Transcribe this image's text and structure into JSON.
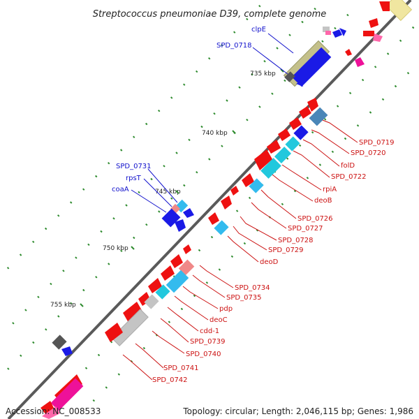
{
  "title": "Streptococcus pneumoniae D39, complete genome",
  "footer": {
    "accession": "Accession: NC_008533",
    "topology": "Topology: circular; Length: 2,046,115 bp; Genes: 1,986"
  },
  "colors": {
    "backbone": "#5a5a5a",
    "tick": "#2e8b2e",
    "ring_dot": "#2e8b2e",
    "label_blue": "#1010cc",
    "label_red": "#cc1111",
    "gene_red": "#ee1111",
    "gene_blue": "#1a1ae6",
    "gene_cyan": "#22c8dd",
    "gene_sky": "#33bbee",
    "gene_steel": "#4a86b8",
    "gene_olive": "#c4c08a",
    "gene_gray": "#c4c4c4",
    "gene_dark": "#555555",
    "gene_pink": "#ff66aa",
    "gene_magenta": "#ee1199",
    "gene_salmon": "#f08888",
    "gene_cream": "#f0e6a0"
  },
  "scale": {
    "ticks": [
      {
        "label": "735 kbp"
      },
      {
        "label": "740 kbp"
      },
      {
        "label": "745 kbp"
      },
      {
        "label": "750 kbp"
      },
      {
        "label": "755 kbp"
      }
    ]
  },
  "labels_left": [
    {
      "name": "clpE"
    },
    {
      "name": "SPD_0718"
    },
    {
      "name": "SPD_0731"
    },
    {
      "name": "rpsT"
    },
    {
      "name": "coaA"
    }
  ],
  "labels_right": [
    {
      "name": "SPD_0719"
    },
    {
      "name": "SPD_0720"
    },
    {
      "name": "folD"
    },
    {
      "name": "SPD_0722"
    },
    {
      "name": "rpiA"
    },
    {
      "name": "deoB"
    },
    {
      "name": "SPD_0726"
    },
    {
      "name": "SPD_0727"
    },
    {
      "name": "SPD_0728"
    },
    {
      "name": "SPD_0729"
    },
    {
      "name": "deoD"
    },
    {
      "name": "SPD_0734"
    },
    {
      "name": "SPD_0735"
    },
    {
      "name": "pdp"
    },
    {
      "name": "deoC"
    },
    {
      "name": "cdd-1"
    },
    {
      "name": "SPD_0739"
    },
    {
      "name": "SPD_0740"
    },
    {
      "name": "SPD_0741"
    },
    {
      "name": "SPD_0742"
    }
  ]
}
